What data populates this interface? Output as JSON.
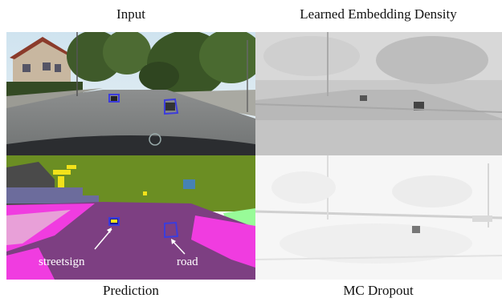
{
  "captions": {
    "input": "Input",
    "density": "Learned Embedding Density",
    "prediction": "Prediction",
    "mc_dropout": "MC Dropout"
  },
  "annotations": {
    "streetsign": "streetsign",
    "road": "road"
  },
  "colors": {
    "road_class": "#7d3f82",
    "sidewalk_class": "#f03ce0",
    "vegetation_class": "#6b8e23",
    "building_class": "#4a4a4a",
    "wall_class": "#6c6c9c",
    "sign_class": "#f2e21a",
    "car_class": "#1a1a8e",
    "sky_class": "#4682b4",
    "highlight_box": "#3c3cdc"
  }
}
